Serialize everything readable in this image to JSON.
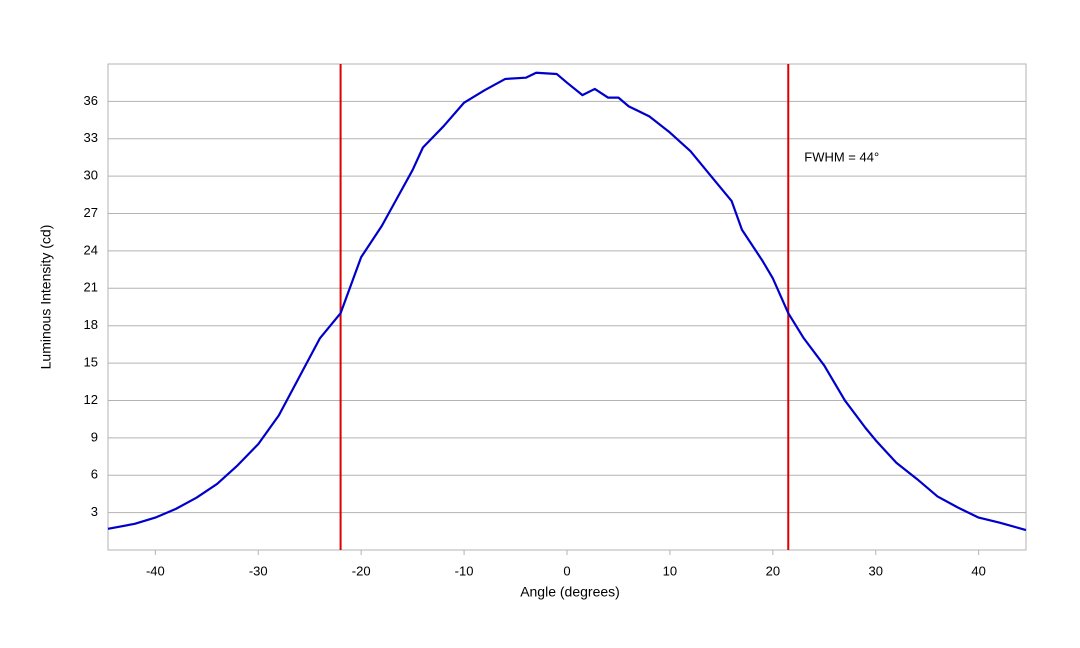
{
  "chart_data": {
    "type": "line",
    "xlabel": "Angle (degrees)",
    "ylabel": "Luminous Intensity (cd)",
    "annotation": "FWHM = 44°",
    "x": [
      -44.6,
      -42,
      -40,
      -38,
      -36,
      -34,
      -32,
      -30,
      -28,
      -26,
      -24,
      -22,
      -20,
      -18,
      -16,
      -15,
      -14,
      -12,
      -10,
      -8,
      -6,
      -4,
      -3,
      -1,
      0,
      1.5,
      2.7,
      4,
      5,
      6,
      8,
      10,
      12,
      14,
      16,
      17,
      19,
      20,
      21.5,
      23,
      25,
      27,
      29,
      30,
      32,
      34,
      36,
      38,
      40,
      42,
      44.6
    ],
    "series": [
      {
        "name": "Luminous Intensity",
        "color": "#0000cc",
        "values": [
          1.7,
          2.1,
          2.6,
          3.3,
          4.2,
          5.3,
          6.8,
          8.5,
          10.8,
          13.9,
          17.0,
          19.0,
          23.5,
          26.0,
          29.0,
          30.5,
          32.3,
          34.0,
          35.9,
          36.9,
          37.8,
          37.9,
          38.3,
          38.2,
          37.5,
          36.5,
          37.0,
          36.3,
          36.3,
          35.6,
          34.8,
          33.5,
          32.0,
          30.0,
          28.0,
          25.7,
          23.2,
          21.8,
          19.0,
          17.0,
          14.8,
          12.0,
          9.8,
          8.8,
          7.0,
          5.7,
          4.3,
          3.4,
          2.6,
          2.2,
          1.6
        ]
      }
    ],
    "vlines": [
      -22,
      21.5
    ],
    "vline_color": "#dd0000",
    "xlim": [
      -44.6,
      44.6
    ],
    "ylim": [
      0,
      39
    ],
    "xticks": [
      -40,
      -30,
      -20,
      -10,
      0,
      10,
      20,
      30,
      40
    ],
    "yticks": [
      3,
      6,
      9,
      12,
      15,
      18,
      21,
      24,
      27,
      30,
      33,
      36
    ],
    "grid": true
  }
}
